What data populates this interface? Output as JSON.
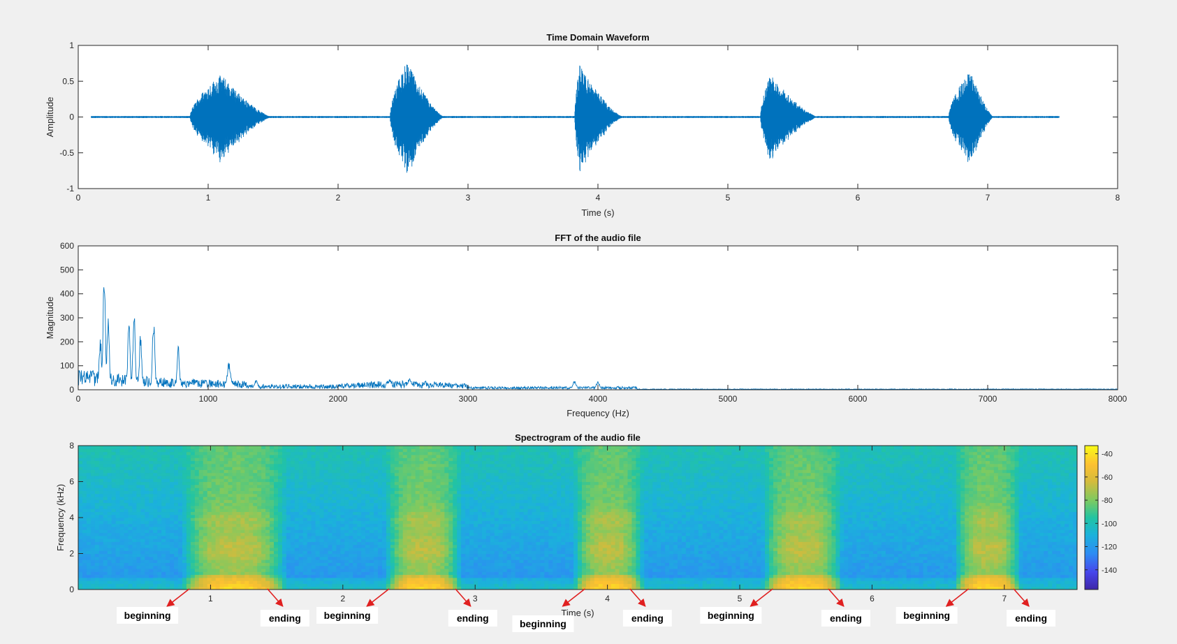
{
  "chart_data": [
    {
      "type": "line",
      "title": "Time Domain Waveform",
      "xlabel": "Time (s)",
      "ylabel": "Amplitude",
      "xlim": [
        0,
        8
      ],
      "ylim": [
        -1,
        1
      ],
      "xticks": [
        0,
        1,
        2,
        3,
        4,
        5,
        6,
        7,
        8
      ],
      "yticks": [
        -1,
        -0.5,
        0,
        0.5,
        1
      ],
      "grid": false,
      "color": "#0072BD",
      "signal_end_s": 7.55,
      "bursts": [
        {
          "start": 0.86,
          "peak_time": 1.1,
          "end": 1.5,
          "peak": 0.6,
          "min": -0.62
        },
        {
          "start": 2.4,
          "peak_time": 2.53,
          "end": 2.82,
          "peak": 0.78,
          "min": -0.75
        },
        {
          "start": 3.82,
          "peak_time": 3.86,
          "end": 4.2,
          "peak": 0.73,
          "min": -0.8
        },
        {
          "start": 5.25,
          "peak_time": 5.33,
          "end": 5.7,
          "peak": 0.6,
          "min": -0.62
        },
        {
          "start": 6.7,
          "peak_time": 6.87,
          "end": 7.05,
          "peak": 0.65,
          "min": -0.6
        }
      ]
    },
    {
      "type": "line",
      "title": "FFT of the audio file",
      "xlabel": "Frequency (Hz)",
      "ylabel": "Magnitude",
      "xlim": [
        0,
        8000
      ],
      "ylim": [
        0,
        600
      ],
      "xticks": [
        0,
        1000,
        2000,
        3000,
        4000,
        5000,
        6000,
        7000,
        8000
      ],
      "yticks": [
        0,
        100,
        200,
        300,
        400,
        500,
        600
      ],
      "grid": false,
      "color": "#0072BD",
      "peaks": [
        {
          "freq": 110,
          "mag": 95
        },
        {
          "freq": 170,
          "mag": 230
        },
        {
          "freq": 200,
          "mag": 510
        },
        {
          "freq": 230,
          "mag": 320
        },
        {
          "freq": 390,
          "mag": 290
        },
        {
          "freq": 430,
          "mag": 335
        },
        {
          "freq": 480,
          "mag": 250
        },
        {
          "freq": 580,
          "mag": 310
        },
        {
          "freq": 770,
          "mag": 195
        },
        {
          "freq": 1160,
          "mag": 115
        },
        {
          "freq": 1370,
          "mag": 40
        },
        {
          "freq": 2400,
          "mag": 45
        },
        {
          "freq": 2550,
          "mag": 50
        },
        {
          "freq": 3820,
          "mag": 40
        },
        {
          "freq": 4000,
          "mag": 35
        }
      ]
    },
    {
      "type": "heatmap",
      "title": "Spectrogram of the audio file",
      "xlabel": "Time (s)",
      "ylabel": "Frequency (kHz)",
      "xlim": [
        0,
        7.55
      ],
      "ylim": [
        0,
        8
      ],
      "xticks": [
        1,
        2,
        3,
        4,
        5,
        6,
        7
      ],
      "yticks": [
        0,
        2,
        4,
        6,
        8
      ],
      "colorbar_ticks": [
        -40,
        -60,
        -80,
        -100,
        -120,
        -140
      ],
      "colorbar_range": [
        -157,
        -33
      ],
      "colormap": [
        "#3E26A8",
        "#4746EB",
        "#2D8CF3",
        "#1BB2DB",
        "#22C4A2",
        "#7DCA61",
        "#D4BB3C",
        "#FDC131",
        "#F9FB15"
      ],
      "annotations": [
        {
          "text": "beginning",
          "time": 0.84
        },
        {
          "text": "ending",
          "time": 1.43
        },
        {
          "text": "beginning",
          "time": 2.35
        },
        {
          "text": "ending",
          "time": 2.85
        },
        {
          "text": "beginning",
          "time": 3.83
        },
        {
          "text": "ending",
          "time": 4.17
        },
        {
          "text": "beginning",
          "time": 5.25
        },
        {
          "text": "ending",
          "time": 5.67
        },
        {
          "text": "beginning",
          "time": 6.73
        },
        {
          "text": "ending",
          "time": 7.07
        }
      ]
    }
  ]
}
